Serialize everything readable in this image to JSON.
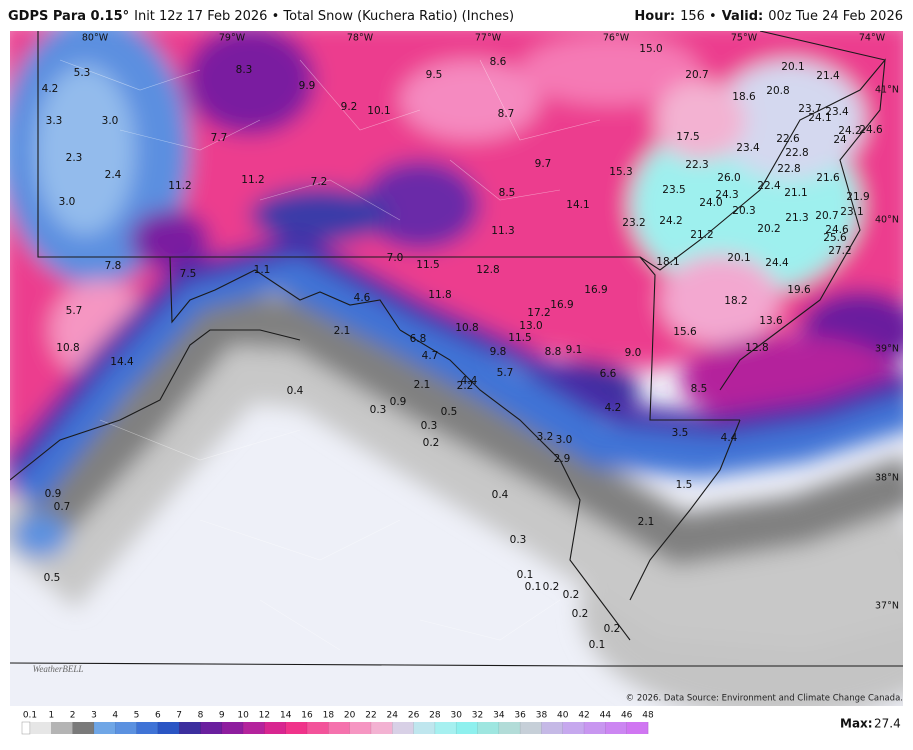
{
  "header": {
    "left": [
      "GDPS Para 0.15°",
      "Init 12z 17 Feb 2026 • Total Snow (Kuchera Ratio) (Inches)"
    ],
    "right": [
      "Hour:",
      "156 •",
      "Valid:",
      "00z Tue 24 Feb 2026"
    ]
  },
  "longitude_labels": [
    "80°W",
    "79°W",
    "78°W",
    "77°W",
    "76°W",
    "75°W",
    "74°W"
  ],
  "latitude_labels": [
    "41°N",
    "40°N",
    "39°N",
    "38°N",
    "37°N"
  ],
  "snow_labels": [
    "5.3",
    "4.2",
    "3.3",
    "3.0",
    "2.3",
    "2.4",
    "3.0",
    "8.3",
    "9.9",
    "9.2",
    "10.1",
    "9.5",
    "8.6",
    "8.7",
    "7.7",
    "11.2",
    "11.2",
    "7.2",
    "9.7",
    "8.5",
    "15.3",
    "14.1",
    "15.0",
    "20.7",
    "20.1",
    "21.4",
    "18.6",
    "20.8",
    "23.7",
    "23.4",
    "24.1",
    "24.2",
    "24.6",
    "17.5",
    "23.4",
    "22.6",
    "22.8",
    "24",
    "22.3",
    "26.0",
    "22.8",
    "21.6",
    "23.5",
    "24.3",
    "22.4",
    "21.1",
    "21.9",
    "24.0",
    "20.3",
    "23.1",
    "11.3",
    "23.2",
    "24.2",
    "21.3",
    "20.7",
    "21.2",
    "20.2",
    "24.6",
    "25.6",
    "27.2",
    "7.8",
    "7.5",
    "1.1",
    "7.0",
    "11.5",
    "12.8",
    "18.1",
    "20.1",
    "24.4",
    "5.7",
    "4.6",
    "11.8",
    "16.9",
    "17.2",
    "16.9",
    "19.6",
    "18.2",
    "2.1",
    "13.0",
    "10.8",
    "11.5",
    "15.6",
    "13.6",
    "6.8",
    "12.8",
    "10.8",
    "14.4",
    "4.7",
    "9.8",
    "8.8",
    "9.1",
    "9.0",
    "5.7",
    "4.4",
    "6.6",
    "2.1",
    "2.2",
    "0.4",
    "8.5",
    "0.9",
    "0.3",
    "0.5",
    "4.2",
    "0.3",
    "3.2",
    "3.0",
    "3.5",
    "4.4",
    "0.2",
    "2.9",
    "0.9",
    "0.7",
    "1.5",
    "0.4",
    "2.1",
    "0.3",
    "0.5",
    "0.1",
    "0.1",
    "0.2",
    "0.2",
    "0.2",
    "0.2",
    "0.1"
  ],
  "legend": {
    "ticks": [
      0.1,
      1,
      2,
      3,
      4,
      5,
      6,
      7,
      8,
      9,
      10,
      12,
      14,
      16,
      18,
      20,
      22,
      24,
      26,
      28,
      30,
      32,
      34,
      36,
      38,
      40,
      42,
      44,
      46,
      48
    ],
    "colors": [
      "#e6e6e6",
      "#b4b4b4",
      "#7a7a7a",
      "#6fa6e6",
      "#5b91e0",
      "#3f73d6",
      "#2a55c4",
      "#3c2e9e",
      "#6a1f9e",
      "#8e1d9e",
      "#b4239c",
      "#d82690",
      "#f0338a",
      "#f3539a",
      "#f572ad",
      "#f696c2",
      "#f3b2d2",
      "#d8d0e6",
      "#bfe6ee",
      "#a6f0f0",
      "#8ef0ee",
      "#9ee6e0",
      "#b2dcd8",
      "#c6cfd8",
      "#c5b9e6",
      "#c6a8ee",
      "#c896f0",
      "#cc86f2",
      "#d076f2"
    ]
  },
  "credit": "© 2026. Data Source: Environment and Climate Change Canada.",
  "logo": "WeatherBELL",
  "max": [
    "Max:",
    "27.4"
  ]
}
